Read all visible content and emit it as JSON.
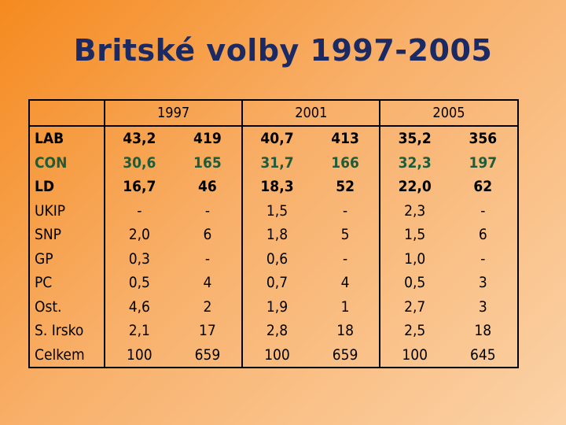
{
  "title": "Britské volby 1997-2005",
  "years": [
    "1997",
    "2001",
    "2005"
  ],
  "rows": [
    {
      "party": "LAB",
      "v": [
        "43,2",
        "419",
        "40,7",
        "413",
        "35,2",
        "356"
      ]
    },
    {
      "party": "CON",
      "v": [
        "30,6",
        "165",
        "31,7",
        "166",
        "32,3",
        "197"
      ]
    },
    {
      "party": "LD",
      "v": [
        "16,7",
        "46",
        "18,3",
        "52",
        "22,0",
        "62"
      ]
    },
    {
      "party": "UKIP",
      "v": [
        "-",
        "-",
        "1,5",
        "-",
        "2,3",
        "-"
      ]
    },
    {
      "party": "SNP",
      "v": [
        "2,0",
        "6",
        "1,8",
        "5",
        "1,5",
        "6"
      ]
    },
    {
      "party": "GP",
      "v": [
        "0,3",
        "-",
        "0,6",
        "-",
        "1,0",
        "-"
      ]
    },
    {
      "party": "PC",
      "v": [
        "0,5",
        "4",
        "0,7",
        "4",
        "0,5",
        "3"
      ]
    },
    {
      "party": "Ost.",
      "v": [
        "4,6",
        "2",
        "1,9",
        "1",
        "2,7",
        "3"
      ]
    },
    {
      "party": "S. Irsko",
      "v": [
        "2,1",
        "17",
        "2,8",
        "18",
        "2,5",
        "18"
      ]
    },
    {
      "party": "Celkem",
      "v": [
        "100",
        "659",
        "100",
        "659",
        "100",
        "645"
      ]
    }
  ]
}
